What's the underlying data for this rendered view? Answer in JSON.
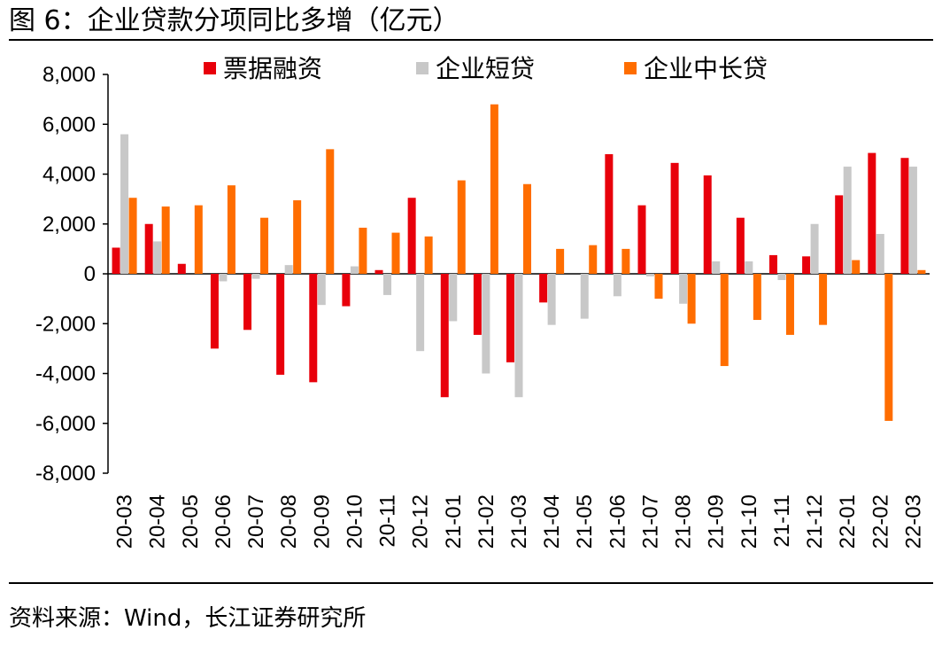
{
  "title": "图 6：企业贷款分项同比多增（亿元）",
  "source": "资料来源：Wind，长江证券研究所",
  "chart_data": {
    "type": "bar",
    "title": "图 6：企业贷款分项同比多增（亿元）",
    "xlabel": "",
    "ylabel": "",
    "ylim": [
      -8000,
      8000
    ],
    "yticks": [
      8000,
      6000,
      4000,
      2000,
      0,
      -2000,
      -4000,
      -6000,
      -8000
    ],
    "ytick_labels": [
      "8,000",
      "6,000",
      "4,000",
      "2,000",
      "0",
      "-2,000",
      "-4,000",
      "-6,000",
      "-8,000"
    ],
    "legend_position": "top",
    "categories": [
      "20-03",
      "20-04",
      "20-05",
      "20-06",
      "20-07",
      "20-08",
      "20-09",
      "20-10",
      "20-11",
      "20-12",
      "21-01",
      "21-02",
      "21-03",
      "21-04",
      "21-05",
      "21-06",
      "21-07",
      "21-08",
      "21-09",
      "21-10",
      "21-11",
      "21-12",
      "22-01",
      "22-02",
      "22-03"
    ],
    "series": [
      {
        "name": "票据融资",
        "color": "#e8000b",
        "values": [
          1050,
          2000,
          400,
          -3000,
          -2250,
          -4050,
          -4350,
          -1300,
          150,
          3050,
          -4950,
          -2450,
          -3550,
          -1150,
          0,
          4800,
          2750,
          4450,
          3950,
          2250,
          750,
          700,
          3150,
          4850,
          4650
        ]
      },
      {
        "name": "企业短贷",
        "color": "#c8c8c8",
        "values": [
          5600,
          1300,
          0,
          -300,
          -200,
          350,
          -1250,
          300,
          -850,
          -3100,
          -1900,
          -4000,
          -4950,
          -2050,
          -1800,
          -900,
          -100,
          -1200,
          500,
          500,
          -250,
          2000,
          4300,
          1600,
          4300
        ]
      },
      {
        "name": "企业中长贷",
        "color": "#ff6d00",
        "values": [
          3050,
          2700,
          2750,
          3550,
          2250,
          2950,
          5000,
          1850,
          1650,
          1500,
          3750,
          6800,
          3600,
          1000,
          1150,
          1000,
          -1000,
          -2000,
          -3700,
          -1850,
          -2450,
          -2050,
          550,
          -5900,
          150
        ]
      }
    ]
  }
}
